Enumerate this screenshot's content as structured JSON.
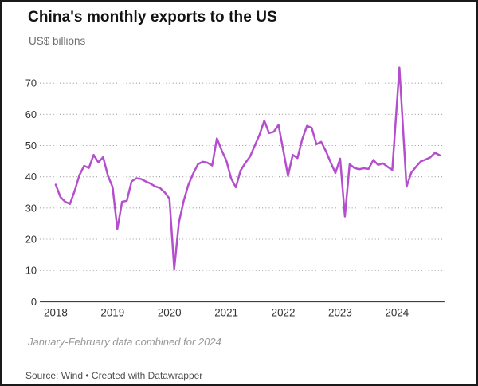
{
  "header": {
    "title": "China's monthly exports to the US",
    "subtitle": "US$ billions"
  },
  "footer": {
    "note": "January-February data combined for 2024",
    "source": "Source: Wind • Created with Datawrapper"
  },
  "chart_data": {
    "type": "line",
    "title": "China's monthly exports to the US",
    "unit": "US$ billions",
    "xlabel": "",
    "ylabel": "US$ billions",
    "x_tick_labels": [
      "2018",
      "2019",
      "2020",
      "2021",
      "2022",
      "2023",
      "2024"
    ],
    "y_ticks": [
      0,
      10,
      20,
      30,
      40,
      50,
      60,
      70
    ],
    "ylim": [
      0,
      78
    ],
    "grid": "horizontal-dotted",
    "legend": "none",
    "line_color": "#b44ecd",
    "axis_color": "#404040",
    "grid_color": "#999999",
    "note": "January and February 2024 are reported as one combined data point",
    "months": [
      "2018-01",
      "2018-02",
      "2018-03",
      "2018-04",
      "2018-05",
      "2018-06",
      "2018-07",
      "2018-08",
      "2018-09",
      "2018-10",
      "2018-11",
      "2018-12",
      "2019-01",
      "2019-02",
      "2019-03",
      "2019-04",
      "2019-05",
      "2019-06",
      "2019-07",
      "2019-08",
      "2019-09",
      "2019-10",
      "2019-11",
      "2019-12",
      "2020-01",
      "2020-02",
      "2020-03",
      "2020-04",
      "2020-05",
      "2020-06",
      "2020-07",
      "2020-08",
      "2020-09",
      "2020-10",
      "2020-11",
      "2020-12",
      "2021-01",
      "2021-02",
      "2021-03",
      "2021-04",
      "2021-05",
      "2021-06",
      "2021-07",
      "2021-08",
      "2021-09",
      "2021-10",
      "2021-11",
      "2021-12",
      "2022-01",
      "2022-02",
      "2022-03",
      "2022-04",
      "2022-05",
      "2022-06",
      "2022-07",
      "2022-08",
      "2022-09",
      "2022-10",
      "2022-11",
      "2022-12",
      "2023-01",
      "2023-02",
      "2023-03",
      "2023-04",
      "2023-05",
      "2023-06",
      "2023-07",
      "2023-08",
      "2023-09",
      "2023-10",
      "2023-11",
      "2023-12",
      "2024-01/02",
      "2024-03",
      "2024-04",
      "2024-05",
      "2024-06",
      "2024-07",
      "2024-08",
      "2024-09",
      "2024-10"
    ],
    "values": [
      37.5,
      33.5,
      32.0,
      31.3,
      35.5,
      40.5,
      43.5,
      42.8,
      47.0,
      44.6,
      46.3,
      40.4,
      36.7,
      23.3,
      32.0,
      32.3,
      38.5,
      39.5,
      39.3,
      38.5,
      37.8,
      36.9,
      36.4,
      35.0,
      33.0,
      10.5,
      25.5,
      32.3,
      37.5,
      41.0,
      44.0,
      44.8,
      44.5,
      43.6,
      52.3,
      48.5,
      45.2,
      39.5,
      36.6,
      42.0,
      44.4,
      46.5,
      50.0,
      53.5,
      58.0,
      54.0,
      54.4,
      56.6,
      48.5,
      40.3,
      47.0,
      46.0,
      52.0,
      56.3,
      55.7,
      50.4,
      51.2,
      48.2,
      44.6,
      41.2,
      45.8,
      27.3,
      44.0,
      42.8,
      42.4,
      42.7,
      42.5,
      45.4,
      43.8,
      44.3,
      43.2,
      42.2,
      75.0,
      36.8,
      41.3,
      43.2,
      44.9,
      45.5,
      46.2,
      47.7,
      46.9
    ],
    "x_index": [
      0,
      1,
      2,
      3,
      4,
      5,
      6,
      7,
      8,
      9,
      10,
      11,
      12,
      13,
      14,
      15,
      16,
      17,
      18,
      19,
      20,
      21,
      22,
      23,
      24,
      25,
      26,
      27,
      28,
      29,
      30,
      31,
      32,
      33,
      34,
      35,
      36,
      37,
      38,
      39,
      40,
      41,
      42,
      43,
      44,
      45,
      46,
      47,
      48,
      49,
      50,
      51,
      52,
      53,
      54,
      55,
      56,
      57,
      58,
      59,
      60,
      61,
      62,
      63,
      64,
      65,
      66,
      67,
      68,
      69,
      70,
      71,
      72.5,
      74,
      75,
      76,
      77,
      78,
      79,
      80,
      81
    ]
  }
}
